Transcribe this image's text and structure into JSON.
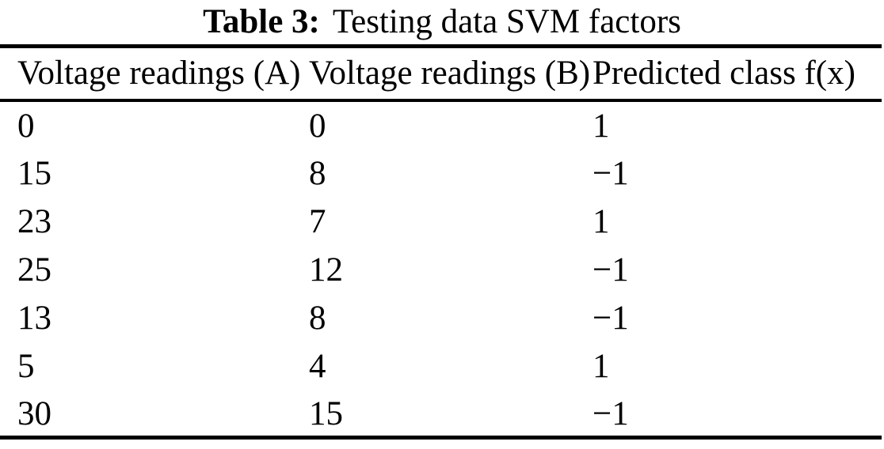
{
  "caption": {
    "label": "Table 3:",
    "text": "Testing data SVM factors"
  },
  "table": {
    "headers": [
      "Voltage readings (A)",
      "Voltage readings (B)",
      "Predicted class f(x)"
    ],
    "rows": [
      [
        "0",
        "0",
        "1"
      ],
      [
        "15",
        "8",
        "−1"
      ],
      [
        "23",
        "7",
        "1"
      ],
      [
        "25",
        "12",
        "−1"
      ],
      [
        "13",
        "8",
        "−1"
      ],
      [
        "5",
        "4",
        "1"
      ],
      [
        "30",
        "15",
        "−1"
      ]
    ]
  },
  "chart_data": {
    "type": "table",
    "title": "Table 3: Testing data SVM factors",
    "columns": [
      "Voltage readings (A)",
      "Voltage readings (B)",
      "Predicted class f(x)"
    ],
    "records": [
      {
        "voltage_a": 0,
        "voltage_b": 0,
        "predicted_class": 1
      },
      {
        "voltage_a": 15,
        "voltage_b": 8,
        "predicted_class": -1
      },
      {
        "voltage_a": 23,
        "voltage_b": 7,
        "predicted_class": 1
      },
      {
        "voltage_a": 25,
        "voltage_b": 12,
        "predicted_class": -1
      },
      {
        "voltage_a": 13,
        "voltage_b": 8,
        "predicted_class": -1
      },
      {
        "voltage_a": 5,
        "voltage_b": 4,
        "predicted_class": 1
      },
      {
        "voltage_a": 30,
        "voltage_b": 15,
        "predicted_class": -1
      }
    ]
  },
  "colors": {
    "text": "#000000",
    "background": "#ffffff",
    "rule": "#000000"
  }
}
